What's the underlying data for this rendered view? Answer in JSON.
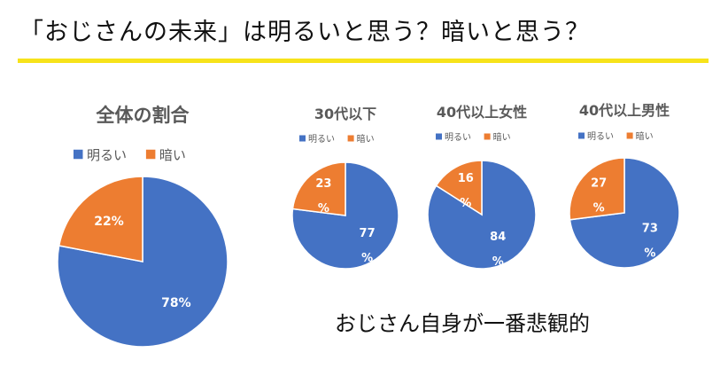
{
  "header": {
    "title": "「おじさんの未来」は明るいと思う？暗いと思う？"
  },
  "note": "おじさん自身が一番悲観的",
  "colors": {
    "bright": "#4472C4",
    "dark": "#ED7D31",
    "rule": "#F7E31A"
  },
  "chart_data": [
    {
      "type": "pie",
      "title": "全体の割合",
      "legend": [
        "明るい",
        "暗い"
      ],
      "legend_position": "top",
      "values": [
        78,
        22
      ],
      "labels": [
        "78%",
        "22%"
      ]
    },
    {
      "type": "pie",
      "title": "30代以下",
      "legend": [
        "明るい",
        "暗い"
      ],
      "legend_position": "top",
      "values": [
        77,
        23
      ],
      "labels": [
        "77%",
        "23%"
      ]
    },
    {
      "type": "pie",
      "title": "40代以上女性",
      "legend": [
        "明るい",
        "暗い"
      ],
      "legend_position": "top",
      "values": [
        84,
        16
      ],
      "labels": [
        "84%",
        "16%"
      ]
    },
    {
      "type": "pie",
      "title": "40代以上男性",
      "legend": [
        "明るい",
        "暗い"
      ],
      "legend_position": "top",
      "values": [
        73,
        27
      ],
      "labels": [
        "73%",
        "27%"
      ]
    }
  ]
}
